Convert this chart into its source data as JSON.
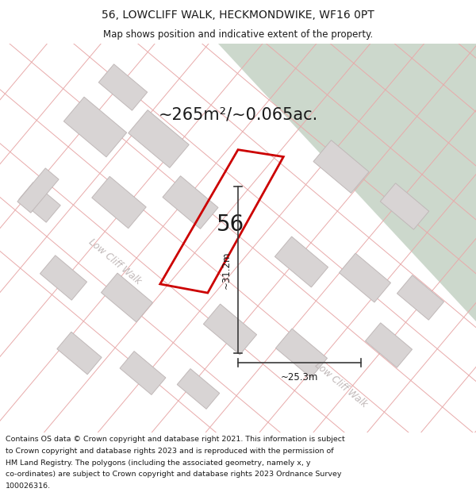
{
  "title_line1": "56, LOWCLIFF WALK, HECKMONDWIKE, WF16 0PT",
  "title_line2": "Map shows position and indicative extent of the property.",
  "area_label": "~265m²/~0.065ac.",
  "property_number": "56",
  "dim_width": "~25.3m",
  "dim_height": "~31.2m",
  "street_label1": "Low Cliff Walk",
  "street_label2": "Low Cliff Walk",
  "footer_lines": [
    "Contains OS data © Crown copyright and database right 2021. This information is subject",
    "to Crown copyright and database rights 2023 and is reproduced with the permission of",
    "HM Land Registry. The polygons (including the associated geometry, namely x, y",
    "co-ordinates) are subject to Crown copyright and database rights 2023 Ordnance Survey",
    "100026316."
  ],
  "bg_color": "#f2eeee",
  "map_bg": "#f2eeee",
  "green_area_color": "#ccd8cc",
  "building_color": "#d8d4d4",
  "building_edge": "#c0b8b8",
  "property_outline_color": "#cc0000",
  "dim_line_color": "#3a3a3a",
  "road_line_color": "#e8aaaa",
  "street_label_color": "#c0b8b8",
  "title_color": "#1a1a1a",
  "footer_color": "#1a1a1a"
}
